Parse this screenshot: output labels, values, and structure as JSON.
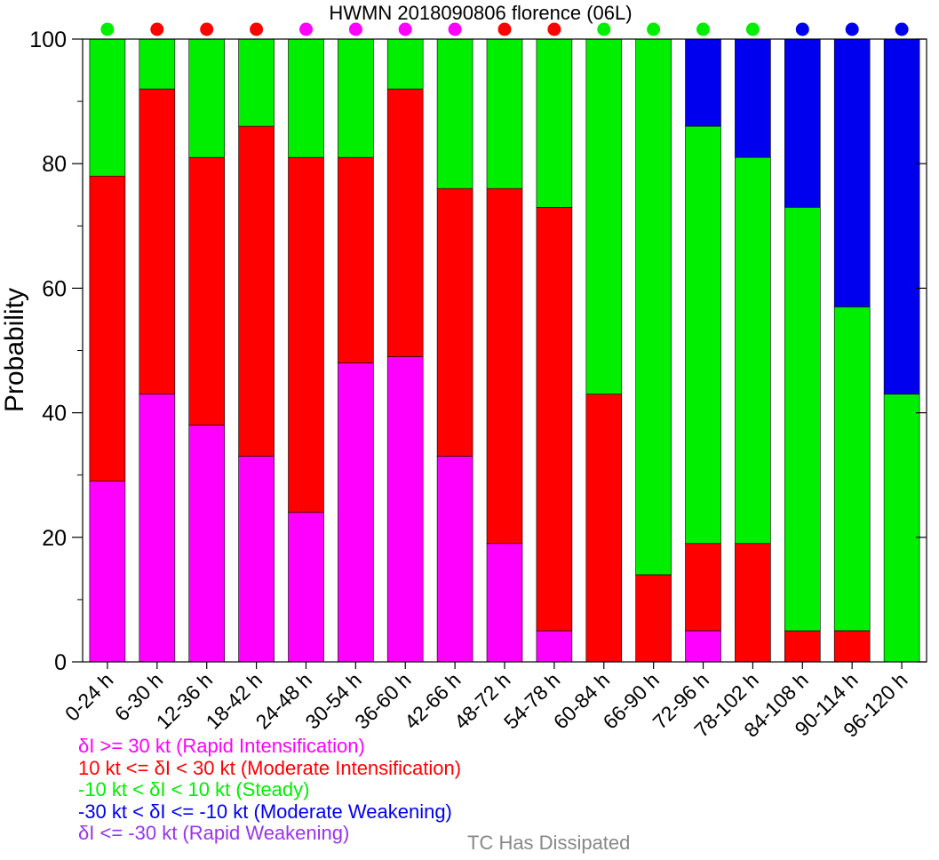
{
  "chart_data": {
    "type": "bar",
    "stacked": true,
    "title": "HWMN 2018090806 florence (06L)",
    "ylabel": "Probability",
    "xlabel": "",
    "ylim": [
      0,
      100
    ],
    "yticks": [
      0,
      20,
      40,
      60,
      80,
      100
    ],
    "categories": [
      "0-24 h",
      "6-30 h",
      "12-36 h",
      "18-42 h",
      "24-48 h",
      "30-54 h",
      "36-60 h",
      "42-66 h",
      "48-72 h",
      "54-78 h",
      "60-84 h",
      "66-90 h",
      "72-96 h",
      "78-102 h",
      "84-108 h",
      "90-114 h",
      "96-120 h"
    ],
    "series": [
      {
        "name": "Rapid Intensification",
        "color": "#ff00ff",
        "values": [
          29,
          43,
          38,
          33,
          24,
          48,
          49,
          33,
          19,
          5,
          0,
          0,
          5,
          0,
          0,
          0,
          0
        ]
      },
      {
        "name": "Moderate Intensification",
        "color": "#ff0000",
        "values": [
          49,
          49,
          43,
          53,
          57,
          33,
          43,
          43,
          57,
          68,
          43,
          14,
          14,
          19,
          5,
          5,
          0
        ]
      },
      {
        "name": "Steady",
        "color": "#00ee00",
        "values": [
          22,
          8,
          19,
          14,
          19,
          19,
          8,
          24,
          24,
          27,
          57,
          86,
          67,
          62,
          68,
          52,
          43
        ]
      },
      {
        "name": "Moderate Weakening",
        "color": "#0000ee",
        "values": [
          0,
          0,
          0,
          0,
          0,
          0,
          0,
          0,
          0,
          0,
          0,
          0,
          14,
          19,
          27,
          43,
          57
        ]
      },
      {
        "name": "Rapid Weakening",
        "color": "#9933ee",
        "values": [
          0,
          0,
          0,
          0,
          0,
          0,
          0,
          0,
          0,
          0,
          0,
          0,
          0,
          0,
          0,
          0,
          0
        ]
      }
    ],
    "top_markers": [
      "#00ee00",
      "#ff0000",
      "#ff0000",
      "#ff0000",
      "#ff00ff",
      "#ff00ff",
      "#ff00ff",
      "#ff00ff",
      "#ff0000",
      "#ff0000",
      "#00ee00",
      "#00ee00",
      "#00ee00",
      "#00ee00",
      "#0000ee",
      "#0000ee",
      "#0000ee"
    ],
    "grid": false,
    "legend_position": "bottom-left"
  },
  "legend": {
    "items": [
      {
        "text": "δI >= 30 kt (Rapid Intensification)",
        "color": "#ff00ff"
      },
      {
        "text": "10 kt <= δI < 30 kt (Moderate Intensification)",
        "color": "#ff0000"
      },
      {
        "text": "-10 kt < δI < 10 kt (Steady)",
        "color": "#00ee00"
      },
      {
        "text": "-30 kt < δI <= -10 kt (Moderate Weakening)",
        "color": "#0000ee"
      },
      {
        "text": "δI <= -30 kt (Rapid Weakening)",
        "color": "#9933ee"
      }
    ],
    "dissipated": {
      "text": "TC Has Dissipated",
      "color": "#888888"
    }
  }
}
